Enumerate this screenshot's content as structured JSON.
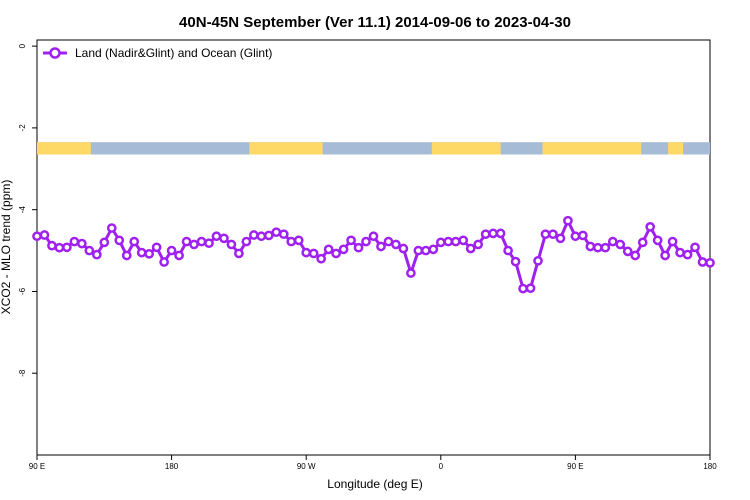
{
  "chart_data": {
    "type": "line",
    "title": "40N-45N September (Ver 11.1)   2014-09-06 to 2023-04-30",
    "xlabel": "Longitude (deg E)",
    "ylabel": "XCO2 - MLO trend (ppm)",
    "x_ticks": [
      "90 E",
      "180",
      "90 W",
      "0",
      "90 E",
      "180"
    ],
    "x_tick_values": [
      90,
      180,
      270,
      360,
      450,
      540
    ],
    "xlim": [
      90,
      540
    ],
    "y_ticks": [
      "0",
      "-2",
      "-4",
      "-6",
      "-8"
    ],
    "y_tick_values": [
      0,
      -2,
      -4,
      -6,
      -8
    ],
    "ylim": [
      -10,
      0.15
    ],
    "grid": false,
    "legend_position": "top-left",
    "series": [
      {
        "name": "Land (Nadir&Glint) and Ocean (Glint)",
        "color": "#a020f0",
        "x": [
          90,
          95,
          100,
          105,
          110,
          115,
          120,
          125,
          130,
          135,
          140,
          145,
          150,
          155,
          160,
          165,
          170,
          175,
          180,
          185,
          190,
          195,
          200,
          205,
          210,
          215,
          220,
          225,
          230,
          235,
          240,
          245,
          250,
          255,
          260,
          265,
          270,
          275,
          280,
          285,
          290,
          295,
          300,
          305,
          310,
          315,
          320,
          325,
          330,
          335,
          340,
          345,
          350,
          355,
          360,
          365,
          370,
          375,
          380,
          385,
          390,
          395,
          400,
          405,
          410,
          415,
          420,
          425,
          430,
          435,
          440,
          445,
          450,
          455,
          460,
          465,
          470,
          475,
          480,
          485,
          490,
          495,
          500,
          505,
          510,
          515,
          520,
          525,
          530,
          535,
          540
        ],
        "y": [
          -4.65,
          -4.62,
          -4.88,
          -4.93,
          -4.92,
          -4.78,
          -4.83,
          -5.0,
          -5.1,
          -4.8,
          -4.45,
          -4.75,
          -5.12,
          -4.78,
          -5.05,
          -5.08,
          -4.92,
          -5.28,
          -5.0,
          -5.12,
          -4.78,
          -4.85,
          -4.78,
          -4.82,
          -4.65,
          -4.7,
          -4.85,
          -5.07,
          -4.78,
          -4.62,
          -4.65,
          -4.63,
          -4.55,
          -4.6,
          -4.78,
          -4.75,
          -5.05,
          -5.07,
          -5.2,
          -4.97,
          -5.07,
          -4.97,
          -4.75,
          -4.93,
          -4.78,
          -4.65,
          -4.9,
          -4.78,
          -4.85,
          -4.95,
          -5.55,
          -5.0,
          -5.0,
          -4.97,
          -4.8,
          -4.78,
          -4.78,
          -4.75,
          -4.95,
          -4.85,
          -4.6,
          -4.58,
          -4.58,
          -5.0,
          -5.27,
          -5.93,
          -5.92,
          -5.25,
          -4.6,
          -4.6,
          -4.7,
          -4.27,
          -4.65,
          -4.63,
          -4.9,
          -4.93,
          -4.93,
          -4.78,
          -4.85,
          -5.02,
          -5.12,
          -4.8,
          -4.42,
          -4.75,
          -5.12,
          -4.78,
          -5.05,
          -5.1,
          -4.92,
          -5.28,
          -5.3
        ]
      }
    ],
    "land_ocean_strip": {
      "y_range": [
        -2.65,
        -2.35
      ],
      "land_color": "#ffd966",
      "ocean_color": "#a6bcd6",
      "land_longitudes": [
        [
          90,
          126
        ],
        [
          232,
          281
        ],
        [
          354,
          400
        ],
        [
          428,
          494
        ],
        [
          512,
          522
        ]
      ]
    }
  }
}
